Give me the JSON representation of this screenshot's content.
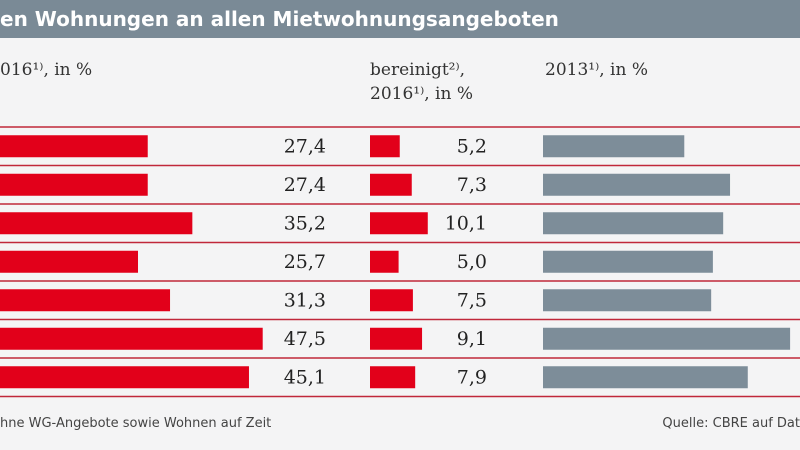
{
  "chart_data": {
    "type": "bar",
    "title": "en Wohnungen an allen Mietwohnungsangeboten",
    "series": [
      {
        "name": "016¹⁾, in %",
        "color": "#e2001a",
        "values": [
          27.4,
          27.4,
          35.2,
          25.7,
          31.3,
          47.5,
          45.1
        ],
        "value_labels": [
          "27,4",
          "27,4",
          "35,2",
          "25,7",
          "31,3",
          "47,5",
          "45,1"
        ]
      },
      {
        "name": "bereinigt²⁾,\n2016¹⁾, in %",
        "color": "#e2001a",
        "values": [
          5.2,
          7.3,
          10.1,
          5.0,
          7.5,
          9.1,
          7.9
        ],
        "value_labels": [
          "5,2",
          "7,3",
          "10,1",
          "5,0",
          "7,5",
          "9,1",
          "7,9"
        ]
      },
      {
        "name": "2013¹⁾, in %",
        "color": "#7d8d99",
        "values": [
          24.7,
          32.7,
          31.5,
          29.7,
          29.4,
          43.2,
          35.8
        ]
      }
    ],
    "footnote": "hne WG-Angebote sowie Wohnen auf Zeit",
    "source": "Quelle: CBRE auf Dat"
  }
}
